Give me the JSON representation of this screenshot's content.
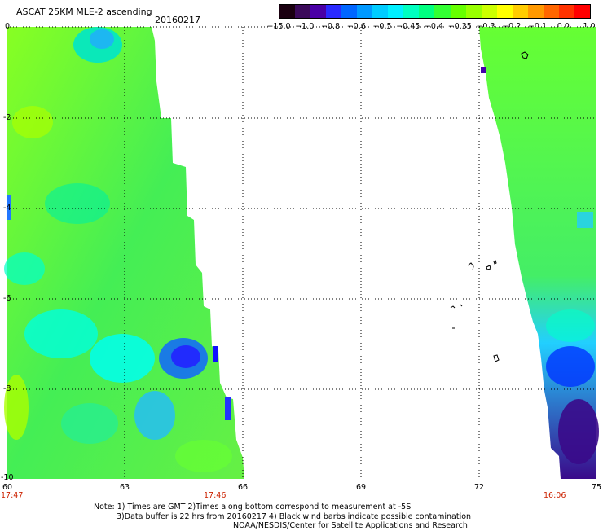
{
  "header": {
    "title": "ASCAT 25KM MLE-2 ascending",
    "date": "20160217"
  },
  "colorbar": {
    "colors": [
      "#1a0010",
      "#3b0a5a",
      "#4a00a6",
      "#2a2aff",
      "#0066ff",
      "#0099ff",
      "#00ccff",
      "#00f0ff",
      "#00ffc0",
      "#00ff80",
      "#33ff33",
      "#66ff00",
      "#99ff00",
      "#ccff00",
      "#ffff00",
      "#ffcc00",
      "#ff9900",
      "#ff6600",
      "#ff3300",
      "#ff0000"
    ],
    "ticks": [
      "-15.0",
      "-1.0",
      "-0.8",
      "-0.6",
      "-0.5",
      "-0.45",
      "-0.4",
      "-0.35",
      "-0.3",
      "-0.2",
      "-0.1",
      "0.0",
      "1.0"
    ]
  },
  "map": {
    "lat_labels": [
      "0",
      "-2",
      "-4",
      "-6",
      "-8",
      "-10"
    ],
    "lon_labels": [
      "60",
      "63",
      "66",
      "69",
      "72",
      "75"
    ],
    "time_labels": [
      "17:47",
      "17:46",
      "16:06"
    ],
    "colors": {
      "green": "#55ee33",
      "lime": "#99ff00",
      "cyan": "#00ffcc",
      "blue": "#0033ff",
      "purple": "#3a0a8a",
      "grid": "#000000",
      "time_red": "#cc2200"
    }
  },
  "notes": {
    "line1": "Note: 1) Times are GMT 2)Times along bottom correspond to measurement at -5S",
    "line2": "3)Data buffer is 22 hrs from 20160217 4) Black wind barbs indicate possible contamination",
    "line3": "NOAA/NESDIS/Center for Satellite Applications and Research"
  }
}
